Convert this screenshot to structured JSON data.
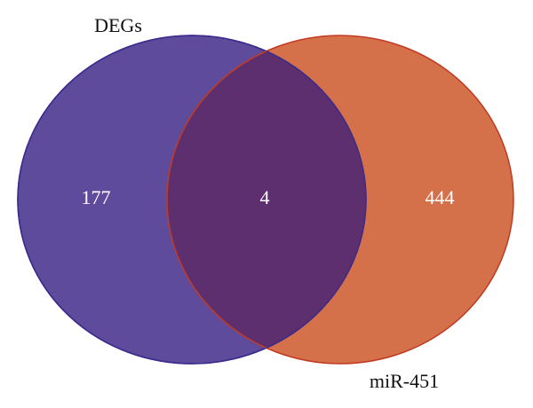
{
  "chart_data": {
    "type": "venn",
    "sets": [
      {
        "name": "DEGs",
        "color": "#5f4b9b",
        "edge": "#3b2b8c"
      },
      {
        "name": "miR-451",
        "color": "#d4704a",
        "edge": "#c23a22"
      }
    ],
    "values": [
      177,
      4,
      444
    ],
    "overlap_color": "#5d2f6f"
  }
}
